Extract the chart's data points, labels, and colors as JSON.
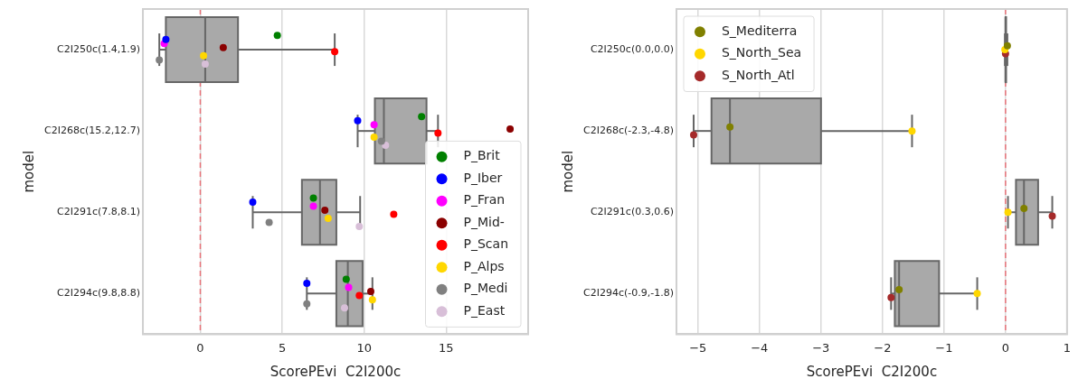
{
  "chart_data": [
    {
      "type": "box",
      "orientation": "horizontal",
      "xlabel": "ScorePEvi  C2I200c",
      "ylabel": "model",
      "categories": [
        "C2I250c(1.4,1.9)",
        "C2I268c(15.2,12.7)",
        "C2I291c(7.8,8.1)",
        "C2I294c(9.8,8.8)"
      ],
      "xlim": [
        -3.5,
        20
      ],
      "xticks": [
        0,
        5,
        10,
        15
      ],
      "grid": "x",
      "legend": "bottom right",
      "marker": "circle",
      "ref_lines": [
        {
          "axis": "x",
          "value": 0,
          "color": "#e8737a",
          "line_style": "dashed"
        }
      ],
      "series": [
        {
          "type": "box",
          "color": "#a9a9a9",
          "boxes": [
            {
              "low": -2.5,
              "q1": -2.1,
              "median": 0.3,
              "q3": 2.3,
              "high": 8.2
            },
            {
              "low": 9.6,
              "q1": 10.65,
              "median": 11.2,
              "q3": 13.8,
              "high": 14.5
            },
            {
              "low": 3.2,
              "q1": 6.2,
              "median": 7.3,
              "q3": 8.3,
              "high": 9.75
            },
            {
              "low": 6.5,
              "q1": 8.3,
              "median": 9.0,
              "q3": 9.9,
              "high": 10.5
            }
          ]
        },
        {
          "type": "scatter",
          "name": "P_Brit",
          "color": "#008000",
          "x": [
            "C2I250c(1.4,1.9)",
            "C2I268c(15.2,12.7)",
            "C2I291c(7.8,8.1)",
            "C2I294c(9.8,8.8)"
          ],
          "values": [
            4.7,
            13.5,
            6.9,
            8.9
          ]
        },
        {
          "type": "scatter",
          "name": "P_Iber",
          "color": "#0000ff",
          "x": [
            "C2I250c(1.4,1.9)",
            "C2I268c(15.2,12.7)",
            "C2I291c(7.8,8.1)",
            "C2I294c(9.8,8.8)"
          ],
          "values": [
            -2.1,
            9.6,
            3.2,
            6.5
          ]
        },
        {
          "type": "scatter",
          "name": "P_Fran",
          "color": "#ff00ff",
          "x": [
            "C2I250c(1.4,1.9)",
            "C2I268c(15.2,12.7)",
            "C2I291c(7.8,8.1)",
            "C2I294c(9.8,8.8)"
          ],
          "values": [
            -2.2,
            10.6,
            6.9,
            9.05
          ]
        },
        {
          "type": "scatter",
          "name": "P_Mid-",
          "color": "#8b0000",
          "x": [
            "C2I250c(1.4,1.9)",
            "C2I268c(15.2,12.7)",
            "C2I291c(7.8,8.1)",
            "C2I294c(9.8,8.8)"
          ],
          "values": [
            1.4,
            18.9,
            7.6,
            10.4
          ]
        },
        {
          "type": "scatter",
          "name": "P_Scan",
          "color": "#ff0000",
          "x": [
            "C2I250c(1.4,1.9)",
            "C2I268c(15.2,12.7)",
            "C2I291c(7.8,8.1)",
            "C2I294c(9.8,8.8)"
          ],
          "values": [
            8.2,
            14.5,
            11.8,
            9.7
          ]
        },
        {
          "type": "scatter",
          "name": "P_Alps",
          "color": "#ffd700",
          "x": [
            "C2I250c(1.4,1.9)",
            "C2I268c(15.2,12.7)",
            "C2I291c(7.8,8.1)",
            "C2I294c(9.8,8.8)"
          ],
          "values": [
            0.2,
            10.6,
            7.8,
            10.5
          ]
        },
        {
          "type": "scatter",
          "name": "P_Medi",
          "color": "#808080",
          "x": [
            "C2I250c(1.4,1.9)",
            "C2I268c(15.2,12.7)",
            "C2I291c(7.8,8.1)",
            "C2I294c(9.8,8.8)"
          ],
          "values": [
            -2.5,
            11.05,
            4.2,
            6.5
          ]
        },
        {
          "type": "scatter",
          "name": "P_East",
          "color": "#d8bfd8",
          "x": [
            "C2I250c(1.4,1.9)",
            "C2I268c(15.2,12.7)",
            "C2I291c(7.8,8.1)",
            "C2I294c(9.8,8.8)"
          ],
          "values": [
            0.3,
            11.3,
            9.7,
            8.8
          ]
        }
      ]
    },
    {
      "type": "box",
      "orientation": "horizontal",
      "xlabel": "ScorePEvi  C2I200c",
      "ylabel": "model",
      "categories": [
        "C2I250c(0.0,0.0)",
        "C2I268c(-2.3,-4.8)",
        "C2I291c(0.3,0.6)",
        "C2I294c(-0.9,-1.8)"
      ],
      "xlim": [
        -5.35,
        1
      ],
      "xticks": [
        -5,
        -4,
        -3,
        -2,
        -1,
        0,
        1
      ],
      "grid": "x",
      "legend": "top left",
      "marker": "circle",
      "ref_lines": [
        {
          "axis": "x",
          "value": 0,
          "color": "#e8737a",
          "line_style": "dashed"
        }
      ],
      "series": [
        {
          "type": "box",
          "color": "#a9a9a9",
          "boxes": [
            {
              "low": -0.01,
              "q1": 0,
              "median": 0,
              "q3": 0.01,
              "high": 0.03
            },
            {
              "low": -5.07,
              "q1": -4.78,
              "median": -4.48,
              "q3": -3.0,
              "high": -1.52
            },
            {
              "low": 0.04,
              "q1": 0.17,
              "median": 0.3,
              "q3": 0.53,
              "high": 0.76
            },
            {
              "low": -1.86,
              "q1": -1.8,
              "median": -1.73,
              "q3": -1.08,
              "high": -0.46
            }
          ]
        },
        {
          "type": "scatter",
          "name": "S_Mediterra",
          "color": "#808000",
          "x": [
            "C2I250c(0.0,0.0)",
            "C2I268c(-2.3,-4.8)",
            "C2I291c(0.3,0.6)",
            "C2I294c(-0.9,-1.8)"
          ],
          "values": [
            0.03,
            -4.48,
            0.3,
            -1.73
          ]
        },
        {
          "type": "scatter",
          "name": "S_North_Sea",
          "color": "#ffd700",
          "x": [
            "C2I250c(0.0,0.0)",
            "C2I268c(-2.3,-4.8)",
            "C2I291c(0.3,0.6)",
            "C2I294c(-0.9,-1.8)"
          ],
          "values": [
            -0.01,
            -1.52,
            0.04,
            -0.46
          ]
        },
        {
          "type": "scatter",
          "name": "S_North_Atl",
          "color": "#a52a2a",
          "x": [
            "C2I250c(0.0,0.0)",
            "C2I268c(-2.3,-4.8)",
            "C2I291c(0.3,0.6)",
            "C2I294c(-0.9,-1.8)"
          ],
          "values": [
            0.0,
            -5.07,
            0.76,
            -1.86
          ]
        }
      ]
    }
  ]
}
